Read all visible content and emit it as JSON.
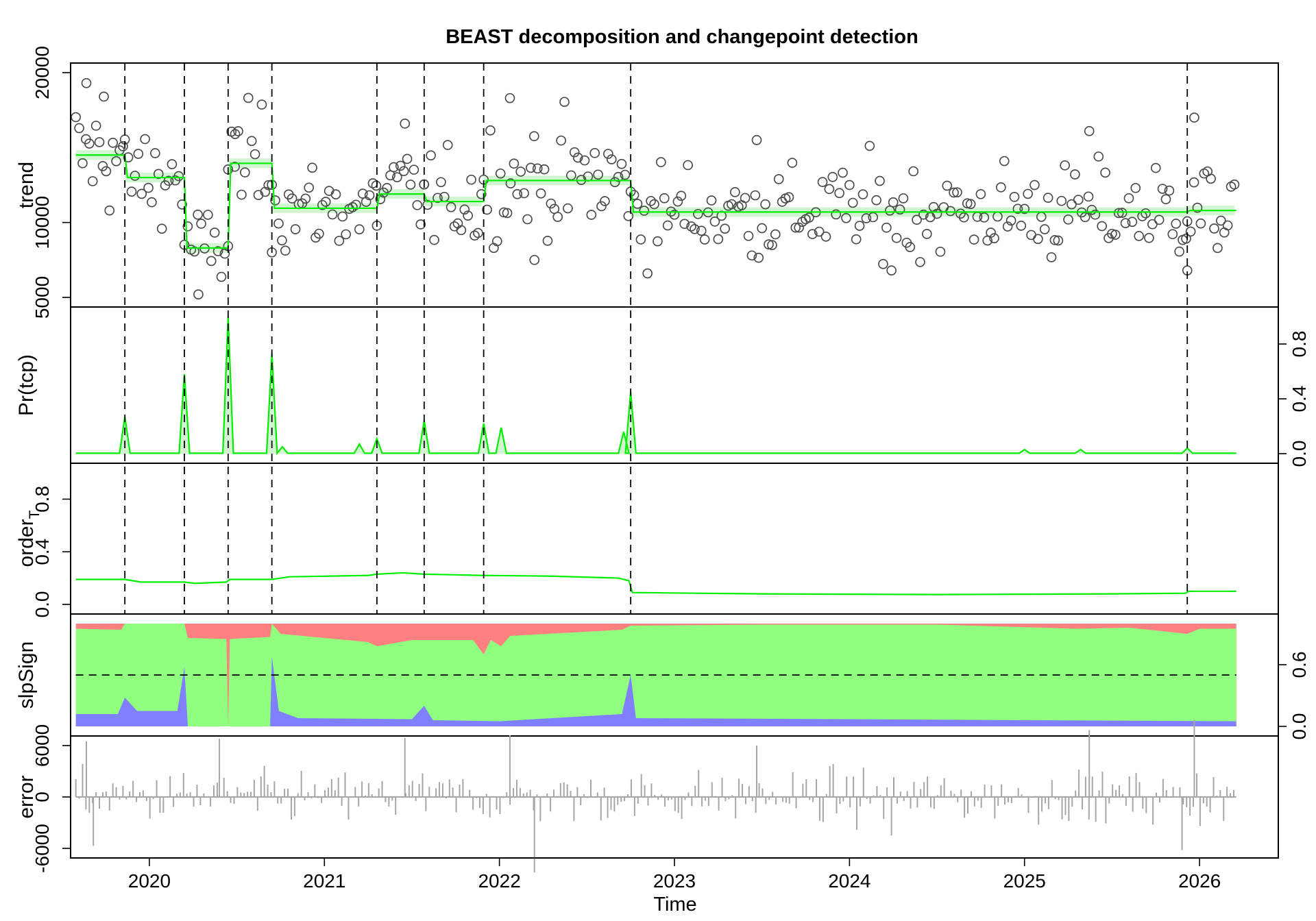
{
  "chart_data": {
    "type": "line",
    "title": "BEAST decomposition and changepoint detection",
    "xlabel": "Time",
    "xlim": [
      2019.55,
      2026.45
    ],
    "x_ticks": [
      2020,
      2021,
      2022,
      2023,
      2024,
      2025,
      2026
    ],
    "changepoints": [
      2019.86,
      2020.2,
      2020.45,
      2020.7,
      2021.3,
      2021.57,
      2021.91,
      2022.75,
      2025.93
    ],
    "colors": {
      "fit": "#00ee00",
      "band": "#ccf5cc",
      "points": "#4d4d4d",
      "slope_positive": "#ff8080",
      "slope_zero": "#90ff80",
      "slope_negative": "#8080ff",
      "error": "#a6a6a6"
    },
    "panels": [
      {
        "id": "trend",
        "ylabel": "trend",
        "ylim": [
          5000,
          20000
        ],
        "y_ticks": [
          5000,
          10000,
          20000
        ],
        "y_tick_labels": [
          "5000",
          "10000",
          "20000"
        ],
        "axis_side": "left",
        "segments": [
          {
            "from": 2019.58,
            "to": 2019.86,
            "level": 14500
          },
          {
            "from": 2019.86,
            "to": 2020.2,
            "level": 13000
          },
          {
            "from": 2020.2,
            "to": 2020.45,
            "level": 8300
          },
          {
            "from": 2020.45,
            "to": 2020.7,
            "level": 13950
          },
          {
            "from": 2020.7,
            "to": 2021.3,
            "level": 10950
          },
          {
            "from": 2021.3,
            "to": 2021.57,
            "level": 11900
          },
          {
            "from": 2021.57,
            "to": 2021.91,
            "level": 11400
          },
          {
            "from": 2021.91,
            "to": 2022.75,
            "level": 12800
          },
          {
            "from": 2022.75,
            "to": 2025.93,
            "level": 10700
          },
          {
            "from": 2025.93,
            "to": 2026.21,
            "level": 10800
          }
        ],
        "noise_sd": [
          1900,
          1700,
          1300,
          1800,
          1500,
          1700,
          1500,
          1900,
          1600,
          1700
        ],
        "highlight_points": [
          {
            "x": 2019.64,
            "y": 19300
          },
          {
            "x": 2019.74,
            "y": 18400
          },
          {
            "x": 2020.28,
            "y": 5200
          },
          {
            "x": 2020.49,
            "y": 15900
          },
          {
            "x": 2021.46,
            "y": 16600
          },
          {
            "x": 2022.06,
            "y": 18300
          },
          {
            "x": 2022.2,
            "y": 7500
          },
          {
            "x": 2023.47,
            "y": 15500
          },
          {
            "x": 2024.24,
            "y": 6800
          },
          {
            "x": 2025.37,
            "y": 16100
          },
          {
            "x": 2025.97,
            "y": 17000
          },
          {
            "x": 2025.93,
            "y": 6800
          }
        ]
      },
      {
        "id": "pr_tcp",
        "ylabel": "Pr(tcp)",
        "ylim": [
          0,
          1
        ],
        "y_ticks": [
          0.0,
          0.4,
          0.8
        ],
        "y_tick_labels": [
          "0.0",
          "0.4",
          "0.8"
        ],
        "axis_side": "right",
        "baseline": 0.003,
        "peaks": [
          {
            "x": 2019.86,
            "y": 0.27
          },
          {
            "x": 2020.2,
            "y": 0.58
          },
          {
            "x": 2020.45,
            "y": 1.0
          },
          {
            "x": 2020.7,
            "y": 0.73
          },
          {
            "x": 2020.76,
            "y": 0.05
          },
          {
            "x": 2021.2,
            "y": 0.07
          },
          {
            "x": 2021.3,
            "y": 0.11
          },
          {
            "x": 2021.57,
            "y": 0.24
          },
          {
            "x": 2021.91,
            "y": 0.22
          },
          {
            "x": 2022.01,
            "y": 0.19
          },
          {
            "x": 2022.71,
            "y": 0.16
          },
          {
            "x": 2022.75,
            "y": 0.45
          },
          {
            "x": 2025.0,
            "y": 0.03
          },
          {
            "x": 2025.32,
            "y": 0.03
          },
          {
            "x": 2025.93,
            "y": 0.04
          }
        ]
      },
      {
        "id": "order",
        "ylabel": "order",
        "ylabel_subscript": "T",
        "ylim": [
          0,
          1
        ],
        "y_ticks": [
          0.0,
          0.4,
          0.8
        ],
        "y_tick_labels": [
          "0.0",
          "0.4",
          "0.8"
        ],
        "axis_side": "left",
        "line": [
          {
            "x": 2019.58,
            "y": 0.19
          },
          {
            "x": 2019.86,
            "y": 0.19
          },
          {
            "x": 2019.95,
            "y": 0.17
          },
          {
            "x": 2020.2,
            "y": 0.17
          },
          {
            "x": 2020.26,
            "y": 0.16
          },
          {
            "x": 2020.44,
            "y": 0.17
          },
          {
            "x": 2020.46,
            "y": 0.19
          },
          {
            "x": 2020.7,
            "y": 0.19
          },
          {
            "x": 2020.8,
            "y": 0.21
          },
          {
            "x": 2021.25,
            "y": 0.22
          },
          {
            "x": 2021.3,
            "y": 0.23
          },
          {
            "x": 2021.45,
            "y": 0.24
          },
          {
            "x": 2021.57,
            "y": 0.23
          },
          {
            "x": 2021.91,
            "y": 0.22
          },
          {
            "x": 2022.3,
            "y": 0.215
          },
          {
            "x": 2022.68,
            "y": 0.2
          },
          {
            "x": 2022.74,
            "y": 0.18
          },
          {
            "x": 2022.76,
            "y": 0.09
          },
          {
            "x": 2023.5,
            "y": 0.08
          },
          {
            "x": 2024.5,
            "y": 0.075
          },
          {
            "x": 2025.5,
            "y": 0.08
          },
          {
            "x": 2025.92,
            "y": 0.085
          },
          {
            "x": 2025.94,
            "y": 0.1
          },
          {
            "x": 2026.21,
            "y": 0.1
          }
        ]
      },
      {
        "id": "slpSign",
        "ylabel": "slpSign",
        "ylim": [
          0,
          1
        ],
        "y_ticks": [
          0.0,
          0.6
        ],
        "y_tick_labels": [
          "0.0",
          "0.6"
        ],
        "axis_side": "right",
        "reference_line": 0.5,
        "negative_top": [
          {
            "x": 2019.58,
            "y": 0.12
          },
          {
            "x": 2019.82,
            "y": 0.12
          },
          {
            "x": 2019.86,
            "y": 0.28
          },
          {
            "x": 2019.93,
            "y": 0.15
          },
          {
            "x": 2020.16,
            "y": 0.15
          },
          {
            "x": 2020.2,
            "y": 0.58
          },
          {
            "x": 2020.22,
            "y": 0.0
          },
          {
            "x": 2020.69,
            "y": 0.0
          },
          {
            "x": 2020.7,
            "y": 0.68
          },
          {
            "x": 2020.74,
            "y": 0.15
          },
          {
            "x": 2020.85,
            "y": 0.08
          },
          {
            "x": 2021.5,
            "y": 0.07
          },
          {
            "x": 2021.57,
            "y": 0.2
          },
          {
            "x": 2021.62,
            "y": 0.06
          },
          {
            "x": 2022.0,
            "y": 0.05
          },
          {
            "x": 2022.7,
            "y": 0.12
          },
          {
            "x": 2022.75,
            "y": 0.5
          },
          {
            "x": 2022.78,
            "y": 0.08
          },
          {
            "x": 2024.0,
            "y": 0.07
          },
          {
            "x": 2025.0,
            "y": 0.06
          },
          {
            "x": 2026.21,
            "y": 0.05
          }
        ],
        "zero_top": [
          {
            "x": 2019.58,
            "y": 0.95
          },
          {
            "x": 2019.84,
            "y": 0.94
          },
          {
            "x": 2019.86,
            "y": 1.0
          },
          {
            "x": 2020.2,
            "y": 1.0
          },
          {
            "x": 2020.22,
            "y": 0.86
          },
          {
            "x": 2020.44,
            "y": 0.85
          },
          {
            "x": 2020.45,
            "y": 0.0
          },
          {
            "x": 2020.46,
            "y": 0.85
          },
          {
            "x": 2020.69,
            "y": 0.87
          },
          {
            "x": 2020.7,
            "y": 1.0
          },
          {
            "x": 2020.75,
            "y": 0.9
          },
          {
            "x": 2021.0,
            "y": 0.86
          },
          {
            "x": 2021.25,
            "y": 0.82
          },
          {
            "x": 2021.3,
            "y": 0.78
          },
          {
            "x": 2021.5,
            "y": 0.84
          },
          {
            "x": 2021.85,
            "y": 0.84
          },
          {
            "x": 2021.91,
            "y": 0.7
          },
          {
            "x": 2021.95,
            "y": 0.84
          },
          {
            "x": 2022.01,
            "y": 0.78
          },
          {
            "x": 2022.06,
            "y": 0.88
          },
          {
            "x": 2022.7,
            "y": 0.94
          },
          {
            "x": 2022.75,
            "y": 0.98
          },
          {
            "x": 2023.5,
            "y": 0.99
          },
          {
            "x": 2024.5,
            "y": 0.99
          },
          {
            "x": 2025.3,
            "y": 0.95
          },
          {
            "x": 2025.6,
            "y": 0.96
          },
          {
            "x": 2025.93,
            "y": 0.9
          },
          {
            "x": 2026.0,
            "y": 0.95
          },
          {
            "x": 2026.21,
            "y": 0.95
          }
        ]
      },
      {
        "id": "error",
        "ylabel": "error",
        "ylim": [
          -6000,
          6000
        ],
        "y_ticks": [
          -6000,
          0,
          6000
        ],
        "y_tick_labels": [
          "-6000",
          "0",
          "6000"
        ],
        "axis_side": "left",
        "noise_sd": 1500,
        "highlight_bars": [
          {
            "x": 2019.64,
            "y": 6500
          },
          {
            "x": 2019.68,
            "y": -5700
          },
          {
            "x": 2020.4,
            "y": 6800
          },
          {
            "x": 2021.46,
            "y": 6900
          },
          {
            "x": 2022.06,
            "y": 7200
          },
          {
            "x": 2022.2,
            "y": -8800
          },
          {
            "x": 2023.47,
            "y": 6000
          },
          {
            "x": 2025.37,
            "y": 7800
          },
          {
            "x": 2025.97,
            "y": 9000
          },
          {
            "x": 2025.9,
            "y": -6200
          },
          {
            "x": 2024.24,
            "y": -4500
          }
        ]
      }
    ]
  }
}
